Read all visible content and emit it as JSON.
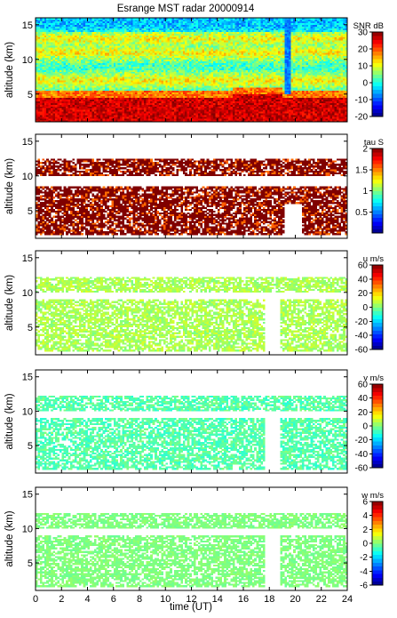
{
  "title": "Esrange MST radar 20000914",
  "x_axis": {
    "label": "time (UT)",
    "range": [
      0,
      24
    ],
    "ticks": [
      "0",
      "2",
      "4",
      "6",
      "8",
      "10",
      "12",
      "14",
      "16",
      "18",
      "20",
      "22",
      "24"
    ]
  },
  "chart_data": [
    {
      "type": "heatmap",
      "ylabel": "altitude (km)",
      "x_range": [
        0,
        24
      ],
      "y_range": [
        1,
        16
      ],
      "y_ticks": [
        "5",
        "10",
        "15"
      ],
      "colorbar": {
        "label": "SNR dB",
        "range": [
          -20,
          30
        ],
        "ticks": [
          "30",
          "20",
          "10",
          "0",
          "-10",
          "-20"
        ]
      },
      "description_values": {
        "strong_low_layer_top_km": 5.5,
        "layer_altitudes_km": [
          7,
          11,
          13
        ],
        "gap_at_hour": 19.3
      }
    },
    {
      "type": "heatmap",
      "ylabel": "altitude (km)",
      "x_range": [
        0,
        24
      ],
      "y_range": [
        1,
        16
      ],
      "y_ticks": [
        "5",
        "10",
        "15"
      ],
      "colorbar": {
        "label": "tau S",
        "range": [
          0,
          2
        ],
        "ticks": [
          "2",
          "1.5",
          "1",
          "0.5"
        ]
      },
      "description_values": {
        "dominant_value": 2.0,
        "data_layers_km": [
          [
            1.5,
            8.5
          ],
          [
            10,
            12.5
          ]
        ]
      }
    },
    {
      "type": "heatmap",
      "ylabel": "altitude (km)",
      "x_range": [
        0,
        24
      ],
      "y_range": [
        1,
        16
      ],
      "y_ticks": [
        "5",
        "10",
        "15"
      ],
      "colorbar": {
        "label": "u m/s",
        "range": [
          -60,
          60
        ],
        "ticks": [
          "60",
          "40",
          "20",
          "0",
          "-20",
          "-40",
          "-60"
        ]
      },
      "description_values": {
        "typical_value": 5
      }
    },
    {
      "type": "heatmap",
      "ylabel": "altitude (km)",
      "x_range": [
        0,
        24
      ],
      "y_range": [
        1,
        16
      ],
      "y_ticks": [
        "5",
        "10",
        "15"
      ],
      "colorbar": {
        "label": "v m/s",
        "range": [
          -60,
          60
        ],
        "ticks": [
          "60",
          "40",
          "20",
          "0",
          "-20",
          "-40",
          "-60"
        ]
      },
      "description_values": {
        "typical_value": -5
      }
    },
    {
      "type": "heatmap",
      "ylabel": "altitude (km)",
      "x_range": [
        0,
        24
      ],
      "y_range": [
        1,
        16
      ],
      "y_ticks": [
        "5",
        "10",
        "15"
      ],
      "colorbar": {
        "label": "w m/s",
        "range": [
          -6,
          6
        ],
        "ticks": [
          "6",
          "4",
          "2",
          "0",
          "-2",
          "-4",
          "-6"
        ]
      },
      "description_values": {
        "typical_value": 0
      }
    }
  ]
}
